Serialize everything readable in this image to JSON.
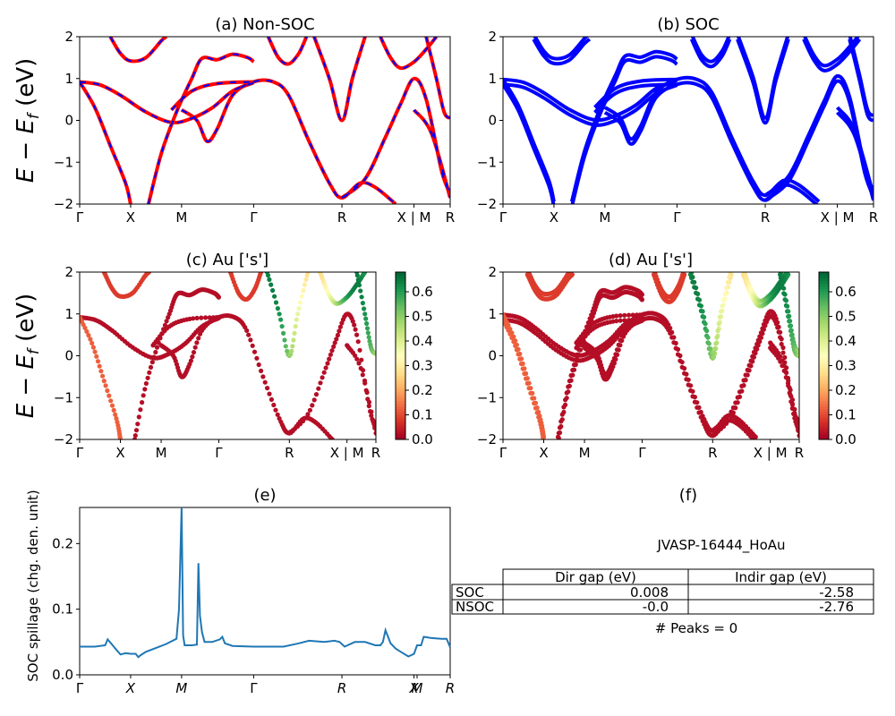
{
  "chart_data": [
    {
      "id": "a",
      "type": "line",
      "title": "(a) Non-SOC",
      "ylabel": "E − E_f (eV)",
      "ylim": [
        -2,
        2
      ],
      "yticks": [
        -2,
        -1,
        0,
        1,
        2
      ],
      "kpath": [
        [
          "Γ",
          0
        ],
        [
          "X",
          1
        ],
        [
          "M",
          2
        ],
        [
          "Γ",
          3.414
        ],
        [
          "R",
          5.146
        ],
        [
          "X | M",
          6.56
        ],
        [
          "R",
          7.27
        ]
      ],
      "series": [
        {
          "color": "#ff0000",
          "style": "solid",
          "bands": [
            [
              [
                0,
                0.92
              ],
              [
                0.4,
                0.85
              ],
              [
                0.8,
                0.6
              ],
              [
                1.3,
                0.2
              ],
              [
                1.8,
                -0.05
              ],
              [
                2.2,
                0.05
              ],
              [
                2.6,
                0.3
              ],
              [
                3.0,
                0.7
              ],
              [
                3.414,
                0.9
              ]
            ],
            [
              [
                0,
                0.92
              ],
              [
                0.3,
                0.3
              ],
              [
                0.6,
                -0.6
              ],
              [
                0.9,
                -1.5
              ],
              [
                1.0,
                -2.0
              ]
            ],
            [
              [
                1.35,
                -2.0
              ],
              [
                1.6,
                -0.8
              ],
              [
                1.9,
                0.2
              ],
              [
                2.2,
                1.0
              ],
              [
                2.4,
                1.48
              ],
              [
                2.7,
                1.45
              ],
              [
                3.0,
                1.58
              ],
              [
                3.3,
                1.5
              ],
              [
                3.414,
                1.4
              ]
            ],
            [
              [
                0.6,
                2.0
              ],
              [
                0.8,
                1.6
              ],
              [
                1.0,
                1.42
              ],
              [
                1.3,
                1.5
              ],
              [
                1.6,
                1.9
              ],
              [
                1.7,
                2.0
              ]
            ],
            [
              [
                2.0,
                0.25
              ],
              [
                2.3,
                0.0
              ],
              [
                2.5,
                -0.5
              ],
              [
                2.7,
                -0.2
              ],
              [
                3.0,
                0.6
              ],
              [
                3.414,
                0.92
              ],
              [
                3.8,
                0.92
              ],
              [
                4.1,
                0.6
              ],
              [
                4.5,
                -0.5
              ],
              [
                4.9,
                -1.5
              ],
              [
                5.146,
                -1.85
              ],
              [
                5.5,
                -1.5
              ],
              [
                5.8,
                -1.6
              ],
              [
                6.2,
                -2.0
              ]
            ],
            [
              [
                1.8,
                0.25
              ],
              [
                2.2,
                0.7
              ],
              [
                2.7,
                0.88
              ],
              [
                3.414,
                0.92
              ]
            ],
            [
              [
                3.7,
                2.0
              ],
              [
                3.9,
                1.5
              ],
              [
                4.1,
                1.35
              ],
              [
                4.3,
                1.6
              ],
              [
                4.45,
                2.0
              ]
            ],
            [
              [
                4.6,
                2.0
              ],
              [
                4.9,
                1.0
              ],
              [
                5.146,
                0.0
              ],
              [
                5.35,
                1.0
              ],
              [
                5.6,
                2.0
              ]
            ],
            [
              [
                5.146,
                -1.85
              ],
              [
                5.6,
                -1.4
              ],
              [
                6.0,
                -0.4
              ],
              [
                6.3,
                0.4
              ],
              [
                6.56,
                1.0
              ],
              [
                6.8,
                0.5
              ],
              [
                7.1,
                -1.2
              ],
              [
                7.27,
                -1.75
              ]
            ],
            [
              [
                5.9,
                2.0
              ],
              [
                6.1,
                1.5
              ],
              [
                6.3,
                1.25
              ],
              [
                6.56,
                1.4
              ],
              [
                6.8,
                1.7
              ],
              [
                7.0,
                2.0
              ]
            ],
            [
              [
                6.56,
                0.25
              ],
              [
                6.9,
                -0.3
              ],
              [
                7.27,
                -1.85
              ]
            ],
            [
              [
                6.8,
                2.0
              ],
              [
                7.0,
                1.0
              ],
              [
                7.15,
                0.2
              ],
              [
                7.27,
                0.05
              ]
            ]
          ]
        },
        {
          "color": "#0000ff",
          "style": "dashed",
          "bands": "same-as-above"
        }
      ]
    },
    {
      "id": "b",
      "type": "line",
      "title": "(b) SOC",
      "ylim": [
        -2,
        2
      ],
      "yticks": [
        -2,
        -1,
        0,
        1,
        2
      ],
      "kpath": [
        [
          "Γ",
          0
        ],
        [
          "X",
          1
        ],
        [
          "M",
          2
        ],
        [
          "Γ",
          3.414
        ],
        [
          "R",
          5.146
        ],
        [
          "X | M",
          6.56
        ],
        [
          "R",
          7.27
        ]
      ],
      "series": [
        {
          "color": "#0000ff",
          "style": "solid"
        }
      ]
    },
    {
      "id": "c",
      "type": "scatter",
      "title": "(c)  Au ['s']",
      "ylabel": "E − E_f (eV)",
      "ylim": [
        -2,
        2
      ],
      "yticks": [
        -2,
        -1,
        0,
        1,
        2
      ],
      "kpath": [
        [
          "Γ",
          0
        ],
        [
          "X",
          1
        ],
        [
          "M",
          2
        ],
        [
          "Γ",
          3.414
        ],
        [
          "R",
          5.146
        ],
        [
          "X | M",
          6.56
        ],
        [
          "R",
          7.27
        ]
      ],
      "colorbar": {
        "cmap": "RdYlGn",
        "ticks": [
          "0.0",
          "0.1",
          "0.2",
          "0.3",
          "0.4",
          "0.5",
          "0.6"
        ],
        "range": [
          0,
          0.68
        ]
      }
    },
    {
      "id": "d",
      "type": "scatter",
      "title": "(d) Au ['s']",
      "ylim": [
        -2,
        2
      ],
      "yticks": [
        -2,
        -1,
        0,
        1,
        2
      ],
      "kpath": [
        [
          "Γ",
          0
        ],
        [
          "X",
          1
        ],
        [
          "M",
          2
        ],
        [
          "Γ",
          3.414
        ],
        [
          "R",
          5.146
        ],
        [
          "X | M",
          6.56
        ],
        [
          "R",
          7.27
        ]
      ],
      "colorbar": {
        "cmap": "RdYlGn",
        "ticks": [
          "0.0",
          "0.1",
          "0.2",
          "0.3",
          "0.4",
          "0.5",
          "0.6"
        ],
        "range": [
          0,
          0.68
        ]
      }
    },
    {
      "id": "e",
      "type": "line",
      "title": "(e)",
      "ylabel": "SOC spillage (chg. den. unit)",
      "ylim": [
        0,
        0.255
      ],
      "yticks": [
        "0.0",
        "0.1",
        "0.2"
      ],
      "xticks": [
        "Γ",
        "X",
        "M",
        "Γ",
        "R",
        "X",
        "M",
        "R"
      ],
      "xtick_pos": [
        0,
        1,
        2,
        3.414,
        5.146,
        6.56,
        6.62,
        7.27
      ],
      "color": "#1f77b4",
      "x": [
        0,
        0.3,
        0.5,
        0.55,
        0.7,
        0.8,
        0.9,
        1.0,
        1.1,
        1.15,
        1.2,
        1.3,
        1.5,
        1.7,
        1.9,
        1.95,
        2.0,
        2.03,
        2.06,
        2.1,
        2.2,
        2.3,
        2.33,
        2.36,
        2.4,
        2.45,
        2.6,
        2.75,
        2.8,
        2.85,
        3.0,
        3.414,
        3.7,
        4.0,
        4.3,
        4.5,
        4.8,
        5.0,
        5.1,
        5.2,
        5.4,
        5.6,
        5.8,
        5.9,
        5.95,
        6.0,
        6.1,
        6.2,
        6.3,
        6.45,
        6.56,
        6.62,
        6.7,
        6.75,
        6.9,
        7.1,
        7.2,
        7.27
      ],
      "y": [
        0.043,
        0.043,
        0.045,
        0.054,
        0.04,
        0.031,
        0.033,
        0.032,
        0.032,
        0.027,
        0.03,
        0.035,
        0.041,
        0.047,
        0.055,
        0.1,
        0.255,
        0.06,
        0.045,
        0.045,
        0.045,
        0.046,
        0.17,
        0.09,
        0.065,
        0.05,
        0.05,
        0.054,
        0.058,
        0.048,
        0.044,
        0.043,
        0.043,
        0.043,
        0.048,
        0.052,
        0.05,
        0.052,
        0.05,
        0.043,
        0.05,
        0.05,
        0.045,
        0.045,
        0.05,
        0.068,
        0.048,
        0.04,
        0.035,
        0.028,
        0.032,
        0.045,
        0.045,
        0.058,
        0.056,
        0.055,
        0.055,
        0.042
      ]
    },
    {
      "id": "f",
      "type": "table",
      "title": "(f)",
      "material": "JVASP-16444_HoAu",
      "columns": [
        "Dir gap (eV)",
        "Indir gap (eV)"
      ],
      "rows": [
        {
          "label": "SOC",
          "values": [
            "0.008",
            "-2.58"
          ]
        },
        {
          "label": "NSOC",
          "values": [
            "-0.0",
            "-2.76"
          ]
        }
      ],
      "footer": "# Peaks = 0"
    }
  ]
}
